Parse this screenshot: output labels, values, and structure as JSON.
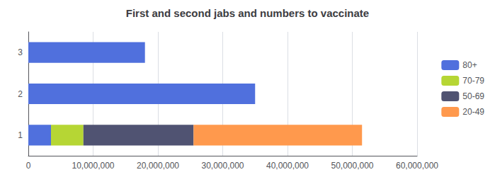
{
  "chart_data": {
    "type": "bar",
    "orientation": "horizontal",
    "stacked": true,
    "title": "First and second jabs and numbers to vaccinate",
    "categories": [
      1,
      2,
      3
    ],
    "series": [
      {
        "name": "80+",
        "values": [
          3500000,
          35000000,
          18000000
        ]
      },
      {
        "name": "70-79",
        "values": [
          5000000,
          0,
          0
        ]
      },
      {
        "name": "50-69",
        "values": [
          17000000,
          0,
          0
        ]
      },
      {
        "name": "20-49",
        "values": [
          26000000,
          0,
          0
        ]
      }
    ],
    "xlim": [
      0,
      60000000
    ],
    "xticks": [
      0,
      {
        "value": 10000000,
        "label": "10,000,000"
      },
      {
        "value": 20000000,
        "label": "20,000,000"
      },
      {
        "value": 30000000,
        "label": "30,000,000"
      },
      {
        "value": 40000000,
        "label": "40,000,000"
      },
      {
        "value": 50000000,
        "label": "50,000,000"
      },
      {
        "value": 60000000,
        "label": "60,000,000"
      }
    ],
    "grid": true,
    "legend": "right"
  }
}
